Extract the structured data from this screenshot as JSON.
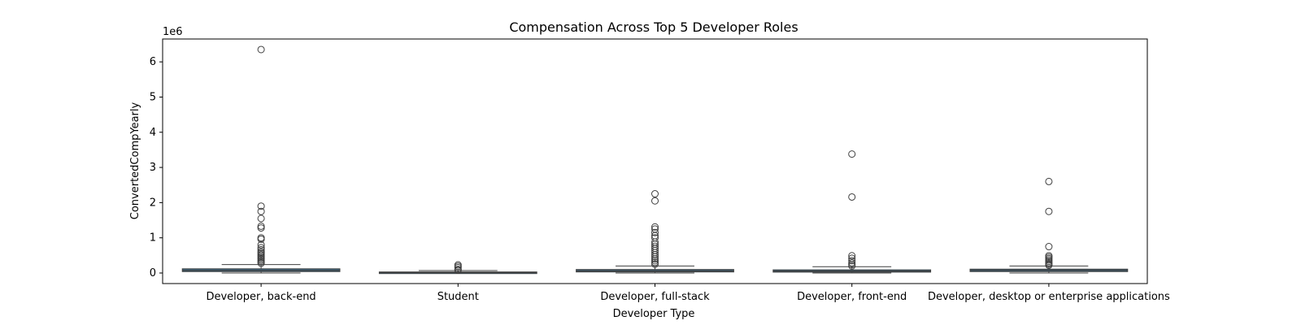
{
  "chart_data": {
    "type": "boxplot",
    "title": "Compensation Across Top 5 Developer Roles",
    "xlabel": "Developer Type",
    "ylabel": "ConvertedCompYearly",
    "y_offset_label": "1e6",
    "y_scale": 1000000,
    "ylim": [
      -300000,
      6650000
    ],
    "yticks": [
      0,
      1000000,
      2000000,
      3000000,
      4000000,
      5000000,
      6000000
    ],
    "ytick_labels": [
      "0",
      "1",
      "2",
      "3",
      "4",
      "5",
      "6"
    ],
    "grid": false,
    "colors": {
      "box_fill": "#3a6d8c",
      "line": "#3f3f3f",
      "outlier_edge": "#3f3f3f"
    },
    "categories": [
      "Developer, back-end",
      "Student",
      "Developer, full-stack",
      "Developer, front-end",
      "Developer, desktop or enterprise applications"
    ],
    "boxes": [
      {
        "whisker_low": 0,
        "q1": 40000,
        "median": 75000,
        "q3": 120000,
        "whisker_high": 240000,
        "outliers": [
          6350000,
          1900000,
          1750000,
          1550000,
          1330000,
          1280000,
          1000000,
          960000,
          800000,
          720000,
          660000,
          600000,
          560000,
          520000,
          480000,
          440000,
          400000,
          360000,
          320000,
          280000
        ]
      },
      {
        "whisker_low": 0,
        "q1": 5000,
        "median": 15000,
        "q3": 30000,
        "whisker_high": 70000,
        "outliers": [
          230000,
          190000,
          150000,
          100000,
          80000
        ]
      },
      {
        "whisker_low": 0,
        "q1": 30000,
        "median": 60000,
        "q3": 100000,
        "whisker_high": 200000,
        "outliers": [
          2250000,
          2050000,
          1310000,
          1250000,
          1150000,
          1060000,
          1000000,
          880000,
          820000,
          760000,
          700000,
          640000,
          580000,
          520000,
          460000,
          400000,
          350000,
          300000,
          250000
        ]
      },
      {
        "whisker_low": 0,
        "q1": 25000,
        "median": 55000,
        "q3": 90000,
        "whisker_high": 180000,
        "outliers": [
          3380000,
          2160000,
          490000,
          420000,
          350000,
          290000,
          240000,
          200000
        ]
      },
      {
        "whisker_low": 0,
        "q1": 40000,
        "median": 75000,
        "q3": 110000,
        "whisker_high": 200000,
        "outliers": [
          2600000,
          1750000,
          750000,
          490000,
          450000,
          410000,
          370000,
          330000,
          290000,
          250000,
          220000
        ]
      }
    ]
  }
}
